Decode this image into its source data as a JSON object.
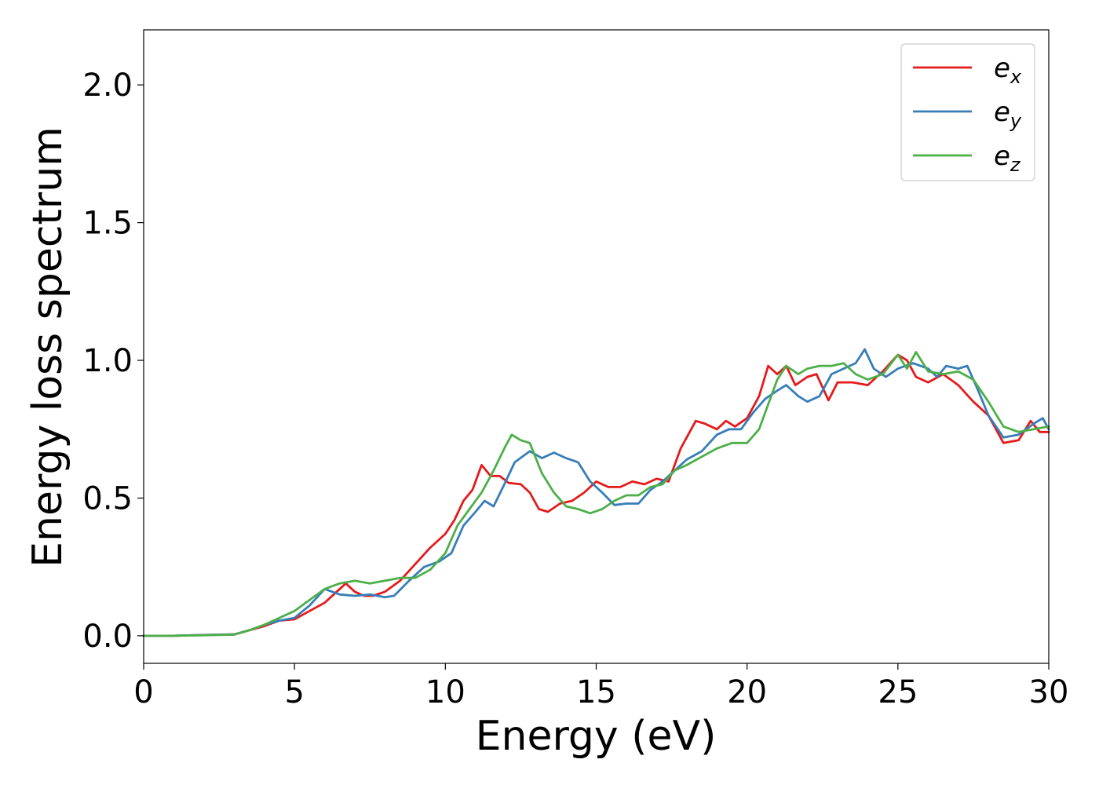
{
  "chart_data": {
    "type": "line",
    "title": "",
    "xlabel": "Energy (eV)",
    "ylabel": "Energy loss spectrum",
    "xlim": [
      0,
      30
    ],
    "ylim": [
      -0.1,
      2.2
    ],
    "xticks": [
      0,
      5,
      10,
      15,
      20,
      25,
      30
    ],
    "yticks": [
      0.0,
      0.5,
      1.0,
      1.5,
      2.0
    ],
    "xtick_labels": [
      "0",
      "5",
      "10",
      "15",
      "20",
      "25",
      "30"
    ],
    "ytick_labels": [
      "0.0",
      "0.5",
      "1.0",
      "1.5",
      "2.0"
    ],
    "grid": false,
    "legend_position": "top-right",
    "series": [
      {
        "name": "e",
        "sub": "x",
        "color": "#e41a1c",
        "points": [
          [
            0,
            0
          ],
          [
            1,
            0
          ],
          [
            2,
            0.003
          ],
          [
            3,
            0.005
          ],
          [
            3.5,
            0.02
          ],
          [
            4,
            0.035
          ],
          [
            4.5,
            0.055
          ],
          [
            5,
            0.06
          ],
          [
            5.5,
            0.09
          ],
          [
            6,
            0.12
          ],
          [
            6.5,
            0.17
          ],
          [
            6.7,
            0.19
          ],
          [
            7,
            0.16
          ],
          [
            7.3,
            0.145
          ],
          [
            7.6,
            0.145
          ],
          [
            8,
            0.16
          ],
          [
            8.5,
            0.2
          ],
          [
            9,
            0.26
          ],
          [
            9.5,
            0.32
          ],
          [
            10,
            0.37
          ],
          [
            10.3,
            0.42
          ],
          [
            10.6,
            0.49
          ],
          [
            10.9,
            0.53
          ],
          [
            11.2,
            0.62
          ],
          [
            11.5,
            0.58
          ],
          [
            11.8,
            0.58
          ],
          [
            12.1,
            0.555
          ],
          [
            12.5,
            0.55
          ],
          [
            12.8,
            0.52
          ],
          [
            13.1,
            0.46
          ],
          [
            13.4,
            0.45
          ],
          [
            13.8,
            0.48
          ],
          [
            14.2,
            0.49
          ],
          [
            14.6,
            0.52
          ],
          [
            15,
            0.56
          ],
          [
            15.4,
            0.54
          ],
          [
            15.8,
            0.54
          ],
          [
            16.2,
            0.56
          ],
          [
            16.6,
            0.55
          ],
          [
            17,
            0.57
          ],
          [
            17.4,
            0.56
          ],
          [
            17.8,
            0.68
          ],
          [
            18.3,
            0.78
          ],
          [
            18.6,
            0.77
          ],
          [
            19,
            0.75
          ],
          [
            19.3,
            0.78
          ],
          [
            19.6,
            0.76
          ],
          [
            20,
            0.79
          ],
          [
            20.4,
            0.87
          ],
          [
            20.7,
            0.98
          ],
          [
            21,
            0.95
          ],
          [
            21.3,
            0.98
          ],
          [
            21.6,
            0.91
          ],
          [
            22,
            0.94
          ],
          [
            22.3,
            0.95
          ],
          [
            22.7,
            0.855
          ],
          [
            23,
            0.92
          ],
          [
            23.5,
            0.92
          ],
          [
            24,
            0.91
          ],
          [
            24.5,
            0.96
          ],
          [
            25,
            1.02
          ],
          [
            25.3,
            1.0
          ],
          [
            25.6,
            0.94
          ],
          [
            26,
            0.92
          ],
          [
            26.5,
            0.95
          ],
          [
            27,
            0.91
          ],
          [
            27.5,
            0.85
          ],
          [
            28,
            0.8
          ],
          [
            28.5,
            0.7
          ],
          [
            29,
            0.71
          ],
          [
            29.4,
            0.78
          ],
          [
            29.7,
            0.74
          ],
          [
            30,
            0.74
          ]
        ]
      },
      {
        "name": "e",
        "sub": "y",
        "color": "#377eb8",
        "points": [
          [
            0,
            0
          ],
          [
            1,
            0
          ],
          [
            2,
            0.003
          ],
          [
            3,
            0.005
          ],
          [
            3.5,
            0.02
          ],
          [
            4,
            0.04
          ],
          [
            4.5,
            0.055
          ],
          [
            5,
            0.065
          ],
          [
            5.5,
            0.11
          ],
          [
            6,
            0.17
          ],
          [
            6.5,
            0.15
          ],
          [
            7,
            0.145
          ],
          [
            7.5,
            0.15
          ],
          [
            8,
            0.14
          ],
          [
            8.3,
            0.145
          ],
          [
            8.8,
            0.2
          ],
          [
            9.3,
            0.25
          ],
          [
            9.8,
            0.27
          ],
          [
            10.2,
            0.3
          ],
          [
            10.6,
            0.4
          ],
          [
            11,
            0.45
          ],
          [
            11.3,
            0.49
          ],
          [
            11.6,
            0.47
          ],
          [
            12,
            0.56
          ],
          [
            12.3,
            0.63
          ],
          [
            12.8,
            0.67
          ],
          [
            13.2,
            0.645
          ],
          [
            13.6,
            0.665
          ],
          [
            14,
            0.645
          ],
          [
            14.4,
            0.63
          ],
          [
            14.8,
            0.56
          ],
          [
            15.2,
            0.52
          ],
          [
            15.6,
            0.475
          ],
          [
            16,
            0.48
          ],
          [
            16.4,
            0.48
          ],
          [
            16.8,
            0.53
          ],
          [
            17.2,
            0.56
          ],
          [
            17.6,
            0.6
          ],
          [
            18,
            0.64
          ],
          [
            18.5,
            0.67
          ],
          [
            19,
            0.73
          ],
          [
            19.4,
            0.75
          ],
          [
            19.8,
            0.75
          ],
          [
            20.2,
            0.81
          ],
          [
            20.6,
            0.86
          ],
          [
            21,
            0.89
          ],
          [
            21.3,
            0.91
          ],
          [
            21.7,
            0.87
          ],
          [
            22,
            0.85
          ],
          [
            22.4,
            0.87
          ],
          [
            22.8,
            0.95
          ],
          [
            23.2,
            0.97
          ],
          [
            23.6,
            0.99
          ],
          [
            23.9,
            1.04
          ],
          [
            24.2,
            0.97
          ],
          [
            24.6,
            0.94
          ],
          [
            25,
            0.97
          ],
          [
            25.5,
            0.99
          ],
          [
            26,
            0.97
          ],
          [
            26.3,
            0.94
          ],
          [
            26.6,
            0.98
          ],
          [
            27,
            0.97
          ],
          [
            27.3,
            0.98
          ],
          [
            27.7,
            0.88
          ],
          [
            28,
            0.8
          ],
          [
            28.5,
            0.72
          ],
          [
            29,
            0.73
          ],
          [
            29.5,
            0.77
          ],
          [
            29.8,
            0.79
          ],
          [
            30,
            0.75
          ]
        ]
      },
      {
        "name": "e",
        "sub": "z",
        "color": "#4daf4a",
        "points": [
          [
            0,
            0
          ],
          [
            1,
            0
          ],
          [
            2,
            0.002
          ],
          [
            3,
            0.004
          ],
          [
            3.5,
            0.02
          ],
          [
            4,
            0.04
          ],
          [
            4.5,
            0.065
          ],
          [
            5,
            0.09
          ],
          [
            5.5,
            0.13
          ],
          [
            6,
            0.17
          ],
          [
            6.5,
            0.19
          ],
          [
            7,
            0.2
          ],
          [
            7.5,
            0.19
          ],
          [
            8,
            0.2
          ],
          [
            8.5,
            0.21
          ],
          [
            9,
            0.21
          ],
          [
            9.5,
            0.24
          ],
          [
            10,
            0.3
          ],
          [
            10.4,
            0.4
          ],
          [
            10.8,
            0.46
          ],
          [
            11.2,
            0.52
          ],
          [
            11.6,
            0.6
          ],
          [
            12,
            0.69
          ],
          [
            12.2,
            0.73
          ],
          [
            12.5,
            0.71
          ],
          [
            12.8,
            0.7
          ],
          [
            13.2,
            0.59
          ],
          [
            13.6,
            0.52
          ],
          [
            14,
            0.47
          ],
          [
            14.4,
            0.46
          ],
          [
            14.8,
            0.445
          ],
          [
            15.2,
            0.46
          ],
          [
            15.6,
            0.49
          ],
          [
            16,
            0.51
          ],
          [
            16.4,
            0.51
          ],
          [
            16.8,
            0.54
          ],
          [
            17.2,
            0.55
          ],
          [
            17.6,
            0.6
          ],
          [
            18,
            0.62
          ],
          [
            18.5,
            0.65
          ],
          [
            19,
            0.68
          ],
          [
            19.5,
            0.7
          ],
          [
            20,
            0.7
          ],
          [
            20.4,
            0.75
          ],
          [
            20.8,
            0.87
          ],
          [
            21,
            0.93
          ],
          [
            21.3,
            0.98
          ],
          [
            21.7,
            0.95
          ],
          [
            22,
            0.97
          ],
          [
            22.4,
            0.98
          ],
          [
            22.8,
            0.98
          ],
          [
            23.2,
            0.99
          ],
          [
            23.6,
            0.95
          ],
          [
            24,
            0.93
          ],
          [
            24.5,
            0.95
          ],
          [
            25,
            1.02
          ],
          [
            25.3,
            0.97
          ],
          [
            25.6,
            1.03
          ],
          [
            26,
            0.96
          ],
          [
            26.5,
            0.95
          ],
          [
            27,
            0.96
          ],
          [
            27.5,
            0.93
          ],
          [
            28,
            0.85
          ],
          [
            28.5,
            0.76
          ],
          [
            29,
            0.74
          ],
          [
            29.5,
            0.75
          ],
          [
            30,
            0.76
          ]
        ]
      }
    ]
  }
}
